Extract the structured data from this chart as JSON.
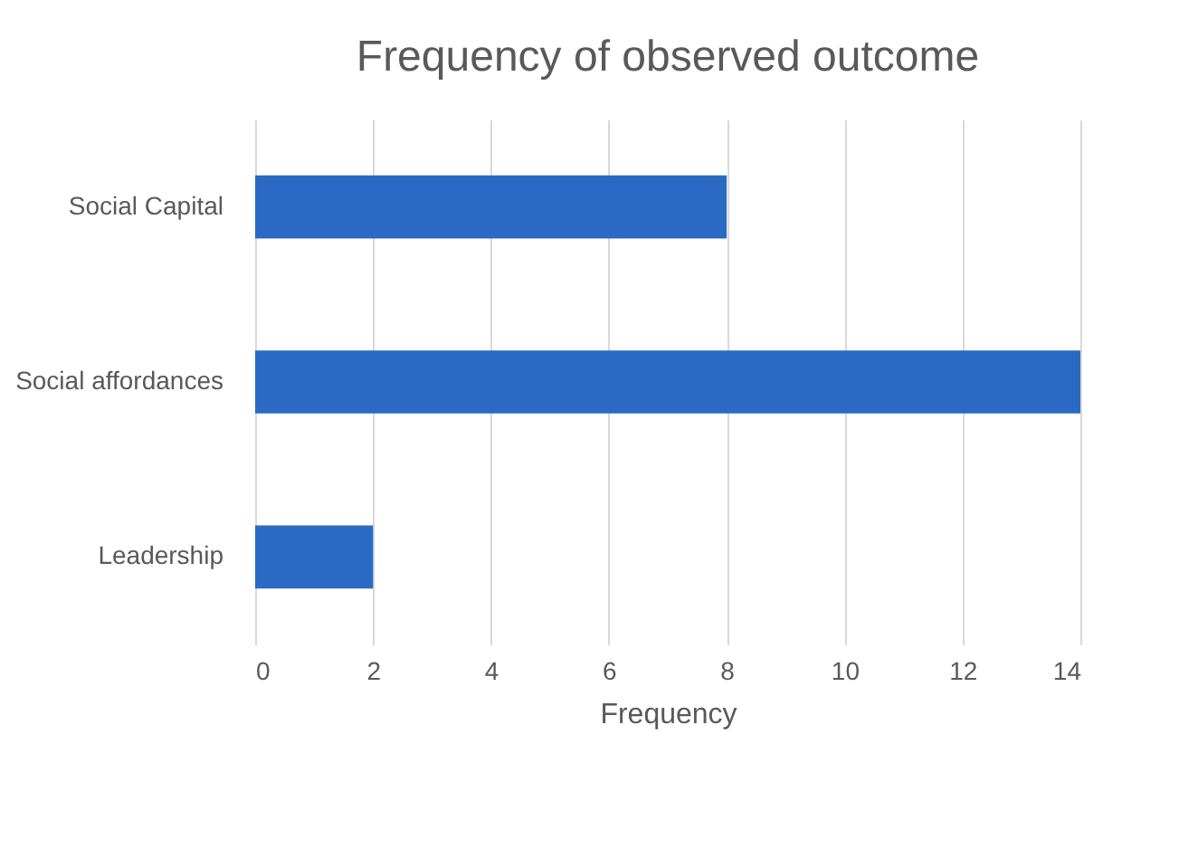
{
  "chart_data": {
    "type": "bar",
    "orientation": "horizontal",
    "title": "Frequency of observed outcome",
    "xlabel": "Frequency",
    "categories": [
      "Social Capital",
      "Social affordances",
      "Leadership"
    ],
    "values": [
      8,
      14,
      2
    ],
    "color": "#2a6ac4",
    "xlim": [
      0,
      14
    ],
    "xticks": [
      0,
      2,
      4,
      6,
      8,
      10,
      12,
      14
    ],
    "grid": "x"
  }
}
